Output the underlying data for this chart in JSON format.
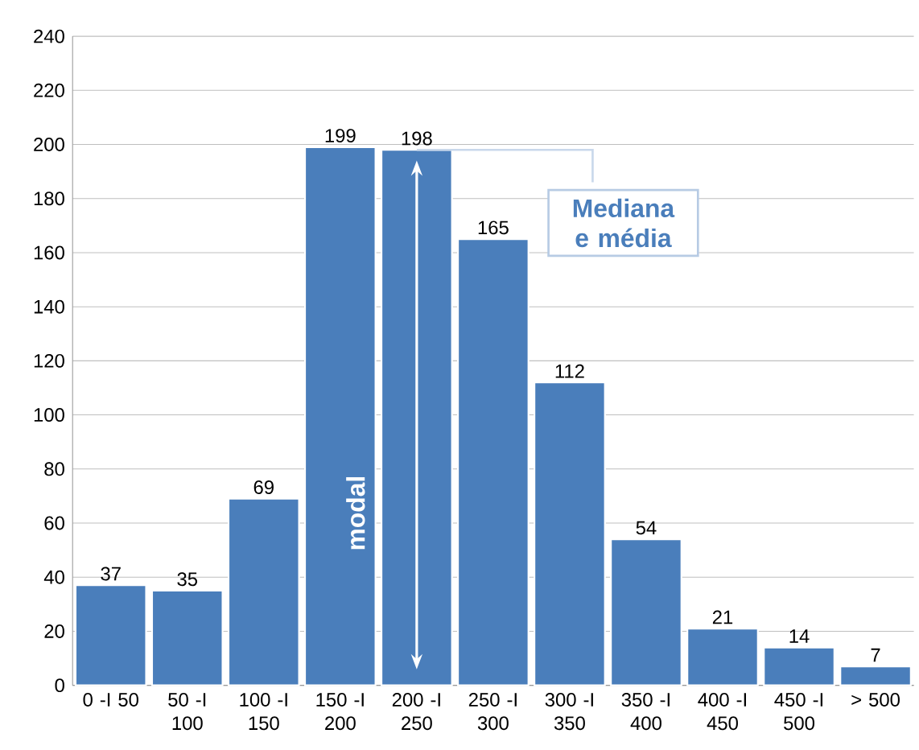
{
  "chart_data": {
    "type": "bar",
    "categories": [
      "0 -I 50",
      "50 -I 100",
      "100 -I 150",
      "150 -I 200",
      "200 -I 250",
      "250 -I 300",
      "300 -I 350",
      "350 -I 400",
      "400 -I 450",
      "450 -I 500",
      "> 500"
    ],
    "values": [
      37,
      35,
      69,
      199,
      198,
      165,
      112,
      54,
      21,
      14,
      7
    ],
    "color": "#4a7ebb",
    "ylim": [
      0,
      240
    ],
    "yticks": [
      0,
      20,
      40,
      60,
      80,
      100,
      120,
      140,
      160,
      180,
      200,
      220,
      240
    ],
    "grid": "y",
    "data_labels": true,
    "annotations": [
      "modal",
      {
        "text": "Mediana e média",
        "x": "200 -I 250",
        "y": 198
      }
    ]
  }
}
